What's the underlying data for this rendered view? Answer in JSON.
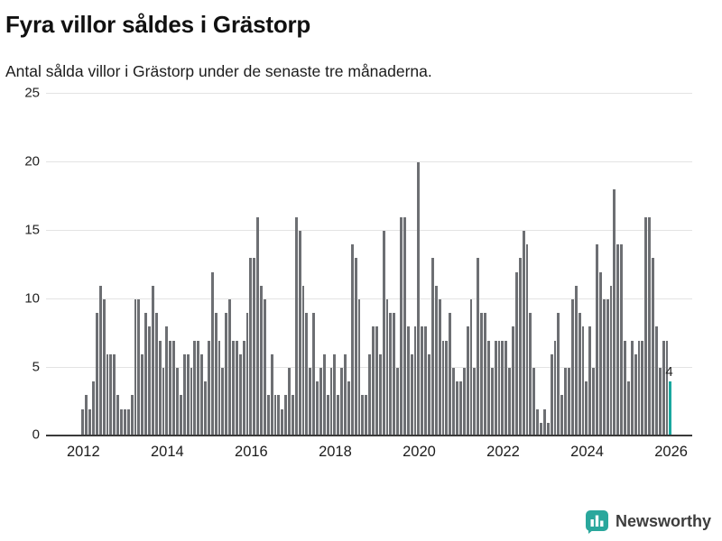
{
  "title": "Fyra villor såldes i Grästorp",
  "subtitle": "Antal sålda villor i Grästorp under de senaste tre månaderna.",
  "branding": {
    "logo_text": "Newsworthy",
    "logo_color": "#2aa79c"
  },
  "chart_data": {
    "type": "bar",
    "title": "Fyra villor såldes i Grästorp",
    "subtitle": "Antal sålda villor i Grästorp under de senaste tre månaderna.",
    "xlabel": "",
    "ylabel": "",
    "x_start_year": 2012,
    "x_granularity": "month",
    "ylim": [
      0,
      25
    ],
    "yticks": [
      0,
      5,
      10,
      15,
      20,
      25
    ],
    "xticks": [
      2012,
      2014,
      2016,
      2018,
      2020,
      2022,
      2024,
      2026
    ],
    "grid": "horizontal",
    "bar_color": "#6d6f73",
    "highlight_color": "#1ba89f",
    "highlight_last": true,
    "last_value_label": "4",
    "values": [
      2,
      3,
      2,
      4,
      9,
      11,
      10,
      6,
      6,
      6,
      3,
      2,
      2,
      2,
      3,
      10,
      10,
      6,
      9,
      8,
      11,
      9,
      7,
      5,
      8,
      7,
      7,
      5,
      3,
      6,
      6,
      5,
      7,
      7,
      6,
      4,
      7,
      12,
      9,
      7,
      5,
      9,
      10,
      7,
      7,
      6,
      7,
      9,
      13,
      13,
      16,
      11,
      10,
      3,
      6,
      3,
      3,
      2,
      3,
      5,
      3,
      16,
      15,
      11,
      9,
      5,
      9,
      4,
      5,
      6,
      3,
      5,
      6,
      3,
      5,
      6,
      4,
      14,
      13,
      10,
      3,
      3,
      6,
      8,
      8,
      6,
      15,
      10,
      9,
      9,
      5,
      16,
      16,
      8,
      6,
      8,
      20,
      8,
      8,
      6,
      13,
      11,
      10,
      7,
      7,
      9,
      5,
      4,
      4,
      5,
      8,
      10,
      5,
      13,
      9,
      9,
      7,
      5,
      7,
      7,
      7,
      7,
      5,
      8,
      12,
      13,
      15,
      14,
      9,
      5,
      2,
      1,
      2,
      1,
      6,
      7,
      9,
      3,
      5,
      5,
      10,
      11,
      9,
      8,
      4,
      8,
      5,
      14,
      12,
      10,
      10,
      11,
      18,
      14,
      14,
      7,
      4,
      7,
      6,
      7,
      7,
      16,
      16,
      13,
      8,
      5,
      7,
      7,
      4
    ]
  }
}
